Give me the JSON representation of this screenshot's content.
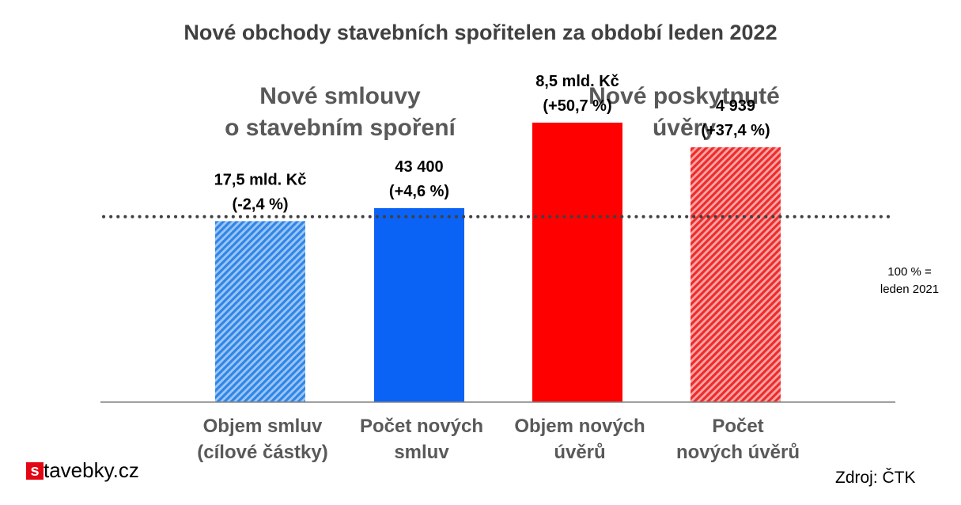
{
  "chart_data": {
    "type": "bar",
    "title": "Nové obchody stavebních spořitelen za období leden 2022",
    "groups": [
      {
        "lines": [
          "Nové smlouvy",
          "o stavebním spoření"
        ]
      },
      {
        "lines": [
          "Nové poskytnuté",
          "úvěry"
        ]
      }
    ],
    "categories": [
      [
        "Objem smluv",
        "(cílové částky)"
      ],
      [
        "Počet  nových",
        "smluv"
      ],
      [
        "Objem nových",
        "úvěrů"
      ],
      [
        "Počet",
        "nových úvěrů"
      ]
    ],
    "values": [
      97.6,
      104.6,
      150.7,
      137.4
    ],
    "unit": "% (100 % = leden 2021)",
    "data_labels": [
      [
        "17,5 mld. Kč",
        "(-2,4 %)"
      ],
      [
        "43 400",
        "(+4,6 %)"
      ],
      [
        "8,5 mld. Kč",
        "(+50,7 %)"
      ],
      [
        "4 939",
        "(+37,4 %)"
      ]
    ],
    "colors": [
      "#2F86E8",
      "#0B63F6",
      "#FF0000",
      "#EF2B2B"
    ],
    "hatched": [
      true,
      false,
      false,
      true
    ],
    "reference_line": {
      "value": 100,
      "label": [
        "100 % =",
        "leden 2021"
      ]
    },
    "ylim": [
      0,
      175
    ],
    "grid": false,
    "legend": "none"
  },
  "brand": {
    "mark": "s",
    "name": "tavebky.cz"
  },
  "source": "Zdroj: ČTK"
}
